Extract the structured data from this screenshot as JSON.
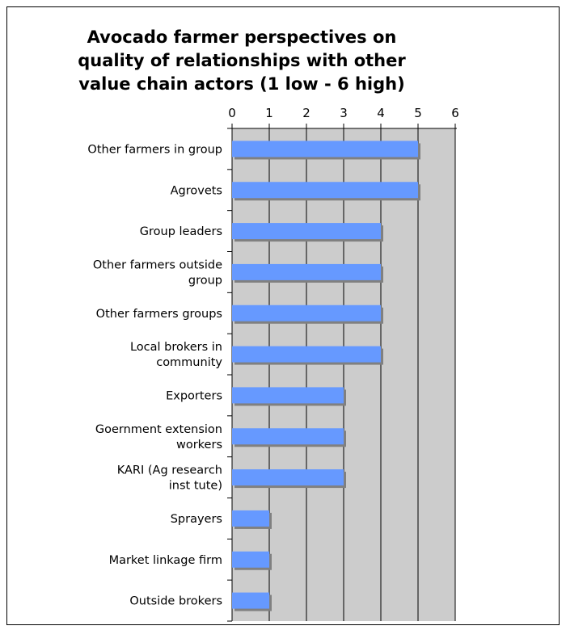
{
  "chart_data": {
    "type": "bar",
    "orientation": "horizontal",
    "title_lines": [
      "Avocado farmer perspectives on",
      "quality of relationships with other",
      "value chain actors (1 low -  6 high)"
    ],
    "xlabel": "",
    "ylabel": "",
    "xlim": [
      0,
      6
    ],
    "ticks": [
      0,
      1,
      2,
      3,
      4,
      5,
      6
    ],
    "grid": true,
    "legend": "none",
    "categories": [
      [
        "Other farmers in group"
      ],
      [
        "Agrovets"
      ],
      [
        "Group leaders"
      ],
      [
        "Other farmers outside",
        "group"
      ],
      [
        "Other farmers groups"
      ],
      [
        "Local brokers in",
        "community"
      ],
      [
        "Exporters"
      ],
      [
        "Goernment extension",
        "workers"
      ],
      [
        "KARI (Ag research",
        "inst tute)"
      ],
      [
        "Sprayers"
      ],
      [
        "Market linkage firm"
      ],
      [
        "Outside brokers"
      ]
    ],
    "values": [
      5,
      5,
      4,
      4,
      4,
      4,
      3,
      3,
      3,
      1,
      1,
      1
    ],
    "colors": {
      "bar": "#6699ff",
      "bar_shadow": "#808080",
      "plot_background": "#cccccc",
      "grid": "#000000"
    }
  }
}
